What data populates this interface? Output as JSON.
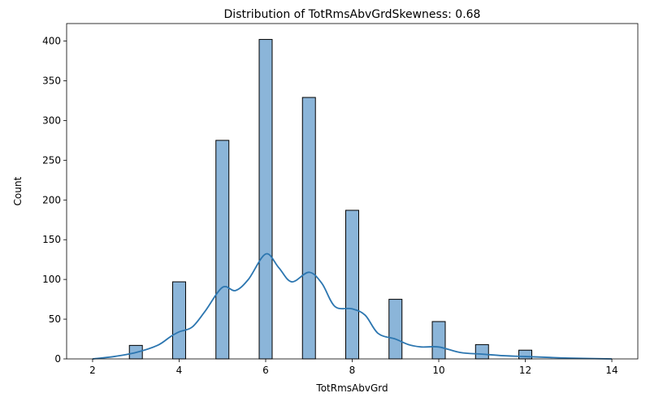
{
  "chart_data": {
    "type": "bar",
    "title": "Distribution of TotRmsAbvGrdSkewness: 0.68",
    "xlabel": "TotRmsAbvGrd",
    "ylabel": "Count",
    "xlim": [
      1.4,
      14.6
    ],
    "ylim": [
      0,
      422
    ],
    "xticks": [
      2,
      4,
      6,
      8,
      10,
      12,
      14
    ],
    "yticks": [
      0,
      50,
      100,
      150,
      200,
      250,
      300,
      350,
      400
    ],
    "bin_width": 0.3,
    "bars": [
      {
        "x": 3,
        "value": 17
      },
      {
        "x": 4,
        "value": 97
      },
      {
        "x": 5,
        "value": 275
      },
      {
        "x": 6,
        "value": 402
      },
      {
        "x": 7,
        "value": 329
      },
      {
        "x": 8,
        "value": 187
      },
      {
        "x": 9,
        "value": 75
      },
      {
        "x": 10,
        "value": 47
      },
      {
        "x": 11,
        "value": 18
      },
      {
        "x": 12,
        "value": 11
      }
    ],
    "kde": {
      "x": [
        2,
        2.5,
        3,
        3.5,
        3.8,
        4,
        4.3,
        4.6,
        5,
        5.3,
        5.6,
        6,
        6.3,
        6.6,
        7,
        7.3,
        7.6,
        8,
        8.3,
        8.6,
        9,
        9.3,
        9.6,
        10,
        10.5,
        11,
        11.5,
        12,
        12.5,
        13,
        14
      ],
      "y": [
        0,
        3,
        8,
        17,
        28,
        34,
        40,
        60,
        90,
        86,
        100,
        132,
        115,
        97,
        109,
        95,
        66,
        63,
        55,
        32,
        25,
        18,
        15,
        15,
        8,
        6,
        4,
        3,
        2,
        1,
        0
      ]
    },
    "colors": {
      "bar_fill": "#8bb5d9",
      "bar_edge": "#000000",
      "kde_line": "#2c76b0"
    },
    "grid": false,
    "legend": "none"
  }
}
